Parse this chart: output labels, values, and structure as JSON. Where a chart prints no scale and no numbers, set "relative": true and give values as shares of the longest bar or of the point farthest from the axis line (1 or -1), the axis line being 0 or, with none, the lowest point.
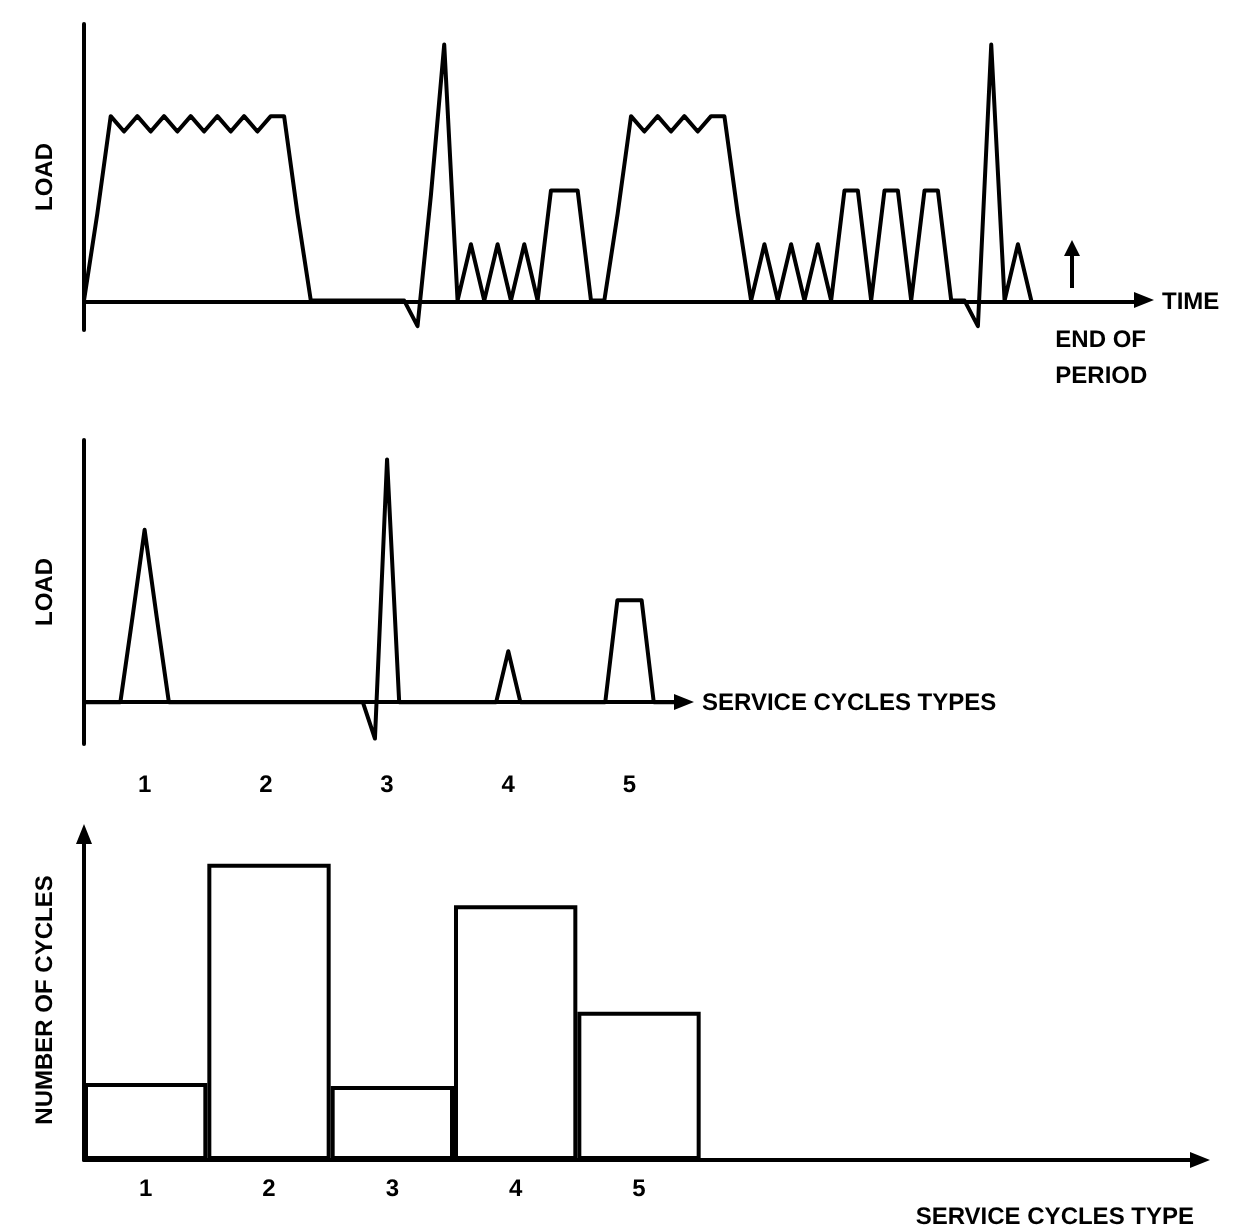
{
  "chart_data": [
    {
      "type": "line",
      "ylabel": "LOAD",
      "xlabel": "TIME",
      "relative": true,
      "annotations": [
        "END OF PERIOD"
      ],
      "categories": [
        null,
        null,
        null,
        null,
        null,
        null,
        null,
        null,
        null,
        null,
        null,
        null,
        null,
        null,
        null,
        null,
        null,
        null,
        null,
        null,
        null,
        null,
        null,
        null,
        null,
        null,
        null,
        null,
        null,
        null,
        null,
        null,
        null,
        null,
        null,
        null,
        null,
        null,
        null,
        null,
        null,
        null,
        null,
        null,
        null,
        null,
        null,
        null,
        null,
        null,
        null,
        null,
        null,
        null,
        null,
        null,
        null,
        null,
        null,
        null,
        null,
        null,
        null,
        null,
        null,
        null,
        null,
        null,
        null,
        null,
        null,
        null,
        null,
        null,
        null,
        null,
        null,
        null,
        null,
        null
      ],
      "series": [
        {
          "color": "#000000",
          "values": [
            0,
            0.34,
            0.72,
            0.66,
            0.72,
            0.66,
            0.72,
            0.66,
            0.72,
            0.66,
            0.72,
            0.66,
            0.72,
            0.66,
            0.72,
            0.72,
            0.34,
            0,
            0,
            0,
            0,
            0,
            0,
            0,
            0,
            -0.1,
            0.41,
            1,
            0,
            0.22,
            0,
            0.22,
            0,
            0.22,
            0,
            0.43,
            0.43,
            0.43,
            0,
            0,
            0.34,
            0.72,
            0.66,
            0.72,
            0.66,
            0.72,
            0.66,
            0.72,
            0.72,
            0.34,
            0,
            0.22,
            0,
            0.22,
            0,
            0.22,
            0,
            0.43,
            0.43,
            0,
            0.43,
            0.43,
            0,
            0.43,
            0.43,
            0,
            0,
            -0.1,
            1,
            0,
            0.22,
            0,
            null,
            null,
            null,
            null,
            null,
            null,
            null,
            null
          ]
        }
      ]
    },
    {
      "type": "line",
      "ylabel": "LOAD",
      "xlabel": "SERVICE CYCLES TYPES",
      "relative": true,
      "categories": [
        null,
        null,
        null,
        null,
        null,
        "1",
        null,
        null,
        null,
        null,
        null,
        null,
        null,
        null,
        null,
        "2",
        null,
        null,
        null,
        null,
        null,
        null,
        null,
        null,
        null,
        "3",
        null,
        null,
        null,
        null,
        null,
        null,
        null,
        null,
        null,
        "4",
        null,
        null,
        null,
        null,
        null,
        null,
        null,
        null,
        null,
        "5",
        null,
        null,
        null,
        null
      ],
      "series": [
        {
          "color": "#000000",
          "values": [
            0,
            0,
            0,
            0,
            0.35,
            0.71,
            0.35,
            0,
            0,
            0,
            0,
            0,
            0,
            0,
            0,
            0,
            0,
            0,
            0,
            0,
            0,
            0,
            0,
            0,
            -0.15,
            1,
            0,
            0,
            0,
            0,
            0,
            0,
            0,
            0,
            0,
            0.21,
            0,
            0,
            0,
            0,
            0,
            0,
            0,
            0,
            0.42,
            0.42,
            0.42,
            0,
            0,
            0
          ]
        }
      ]
    },
    {
      "type": "bar",
      "ylabel": "NUMBER OF CYCLES",
      "xlabel": "SERVICE CYCLES TYPE",
      "relative": true,
      "categories": [
        "1",
        "2",
        "3",
        "4",
        "5",
        null,
        null,
        null,
        null
      ],
      "series": [
        {
          "color": "#ffffff",
          "values": [
            0.26,
            1,
            0.25,
            0.86,
            0.5,
            null,
            null,
            null,
            null
          ]
        }
      ]
    }
  ]
}
